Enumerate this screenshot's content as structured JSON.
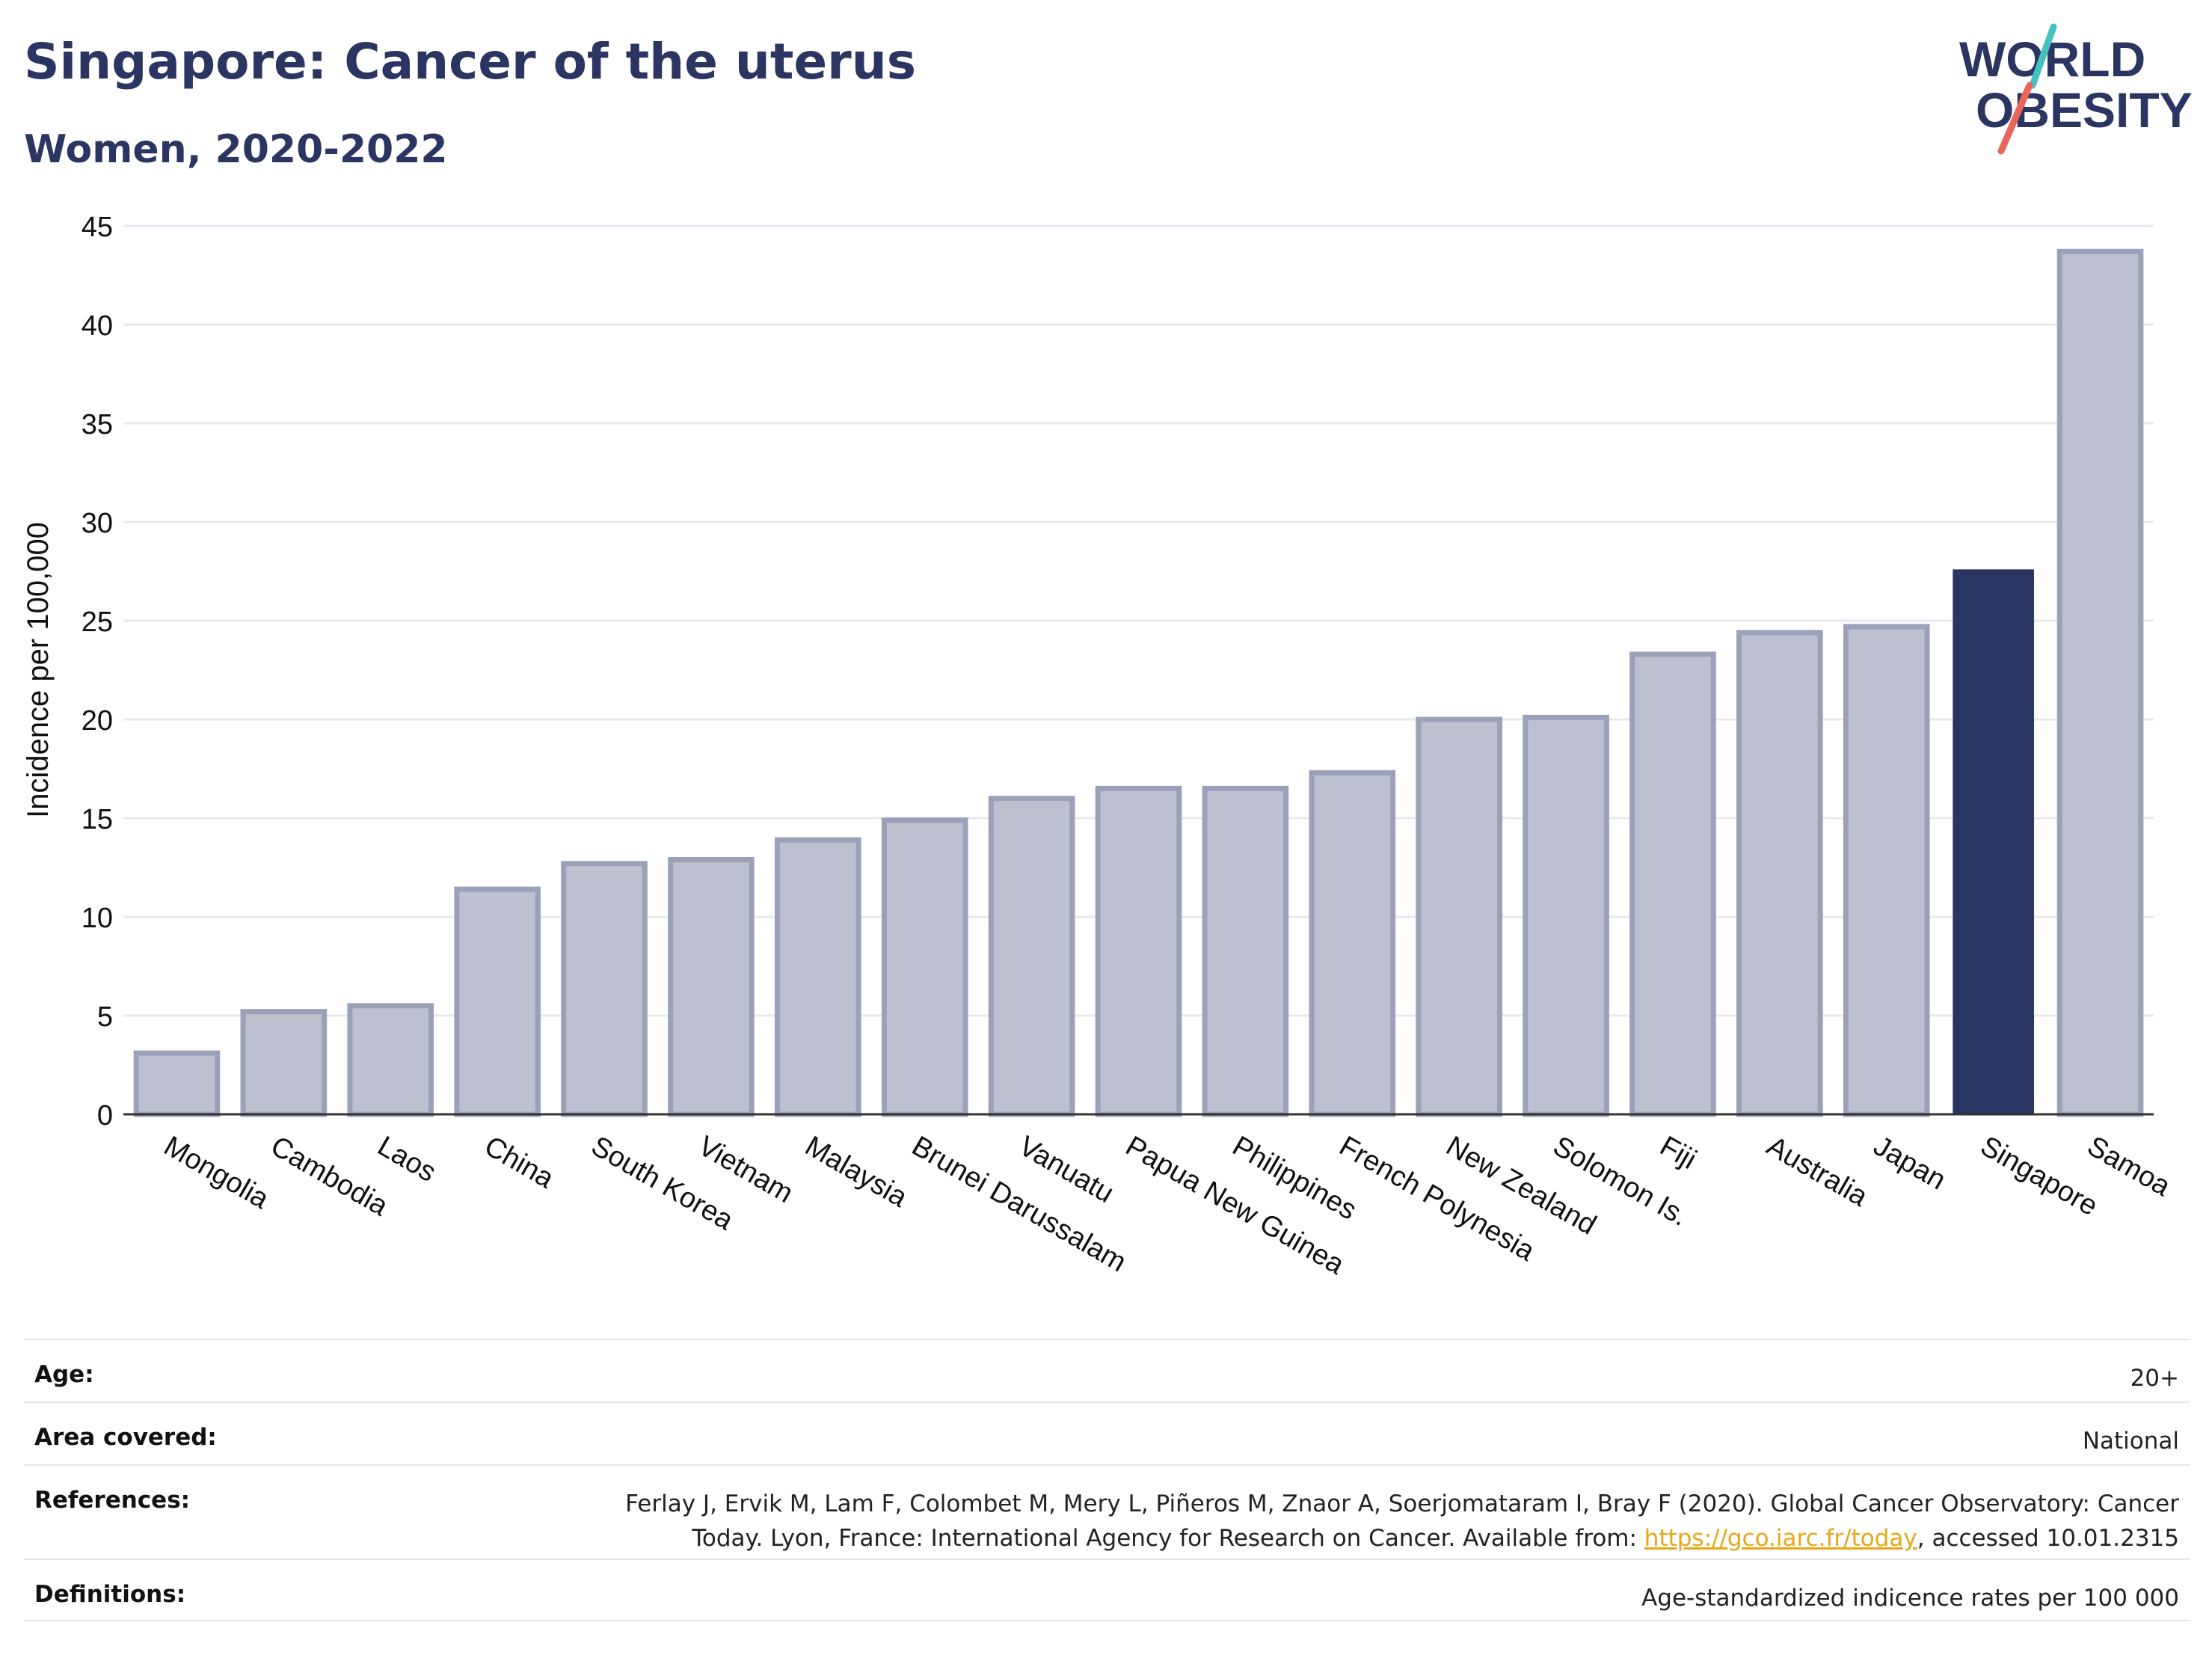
{
  "header": {
    "title": "Singapore: Cancer of the uterus",
    "subtitle": "Women, 2020-2022"
  },
  "logo": {
    "line1": "WORLD",
    "line2": "OBESITY",
    "slash_colors": [
      "#43c2c0",
      "#e8665a"
    ],
    "text_color": "#2b3562"
  },
  "chart_data": {
    "type": "bar",
    "title": "Singapore: Cancer of the uterus",
    "subtitle": "Women, 2020-2022",
    "ylabel": "Incidence per 100,000",
    "xlabel": "",
    "ylim": [
      0,
      45
    ],
    "yticks": [
      0,
      5,
      10,
      15,
      20,
      25,
      30,
      35,
      40,
      45
    ],
    "grid": true,
    "categories": [
      "Mongolia",
      "Cambodia",
      "Laos",
      "China",
      "South Korea",
      "Vietnam",
      "Malaysia",
      "Brunei Darussalam",
      "Vanuatu",
      "Papua New Guinea",
      "Philippines",
      "French Polynesia",
      "New Zealand",
      "Solomon Is.",
      "Fiji",
      "Australia",
      "Japan",
      "Singapore",
      "Samoa"
    ],
    "values": [
      3.1,
      5.2,
      5.5,
      11.4,
      12.7,
      12.9,
      13.9,
      14.9,
      16.0,
      16.5,
      16.5,
      17.3,
      20.0,
      20.1,
      23.3,
      24.4,
      24.7,
      27.6,
      43.7
    ],
    "highlight": "Singapore",
    "colors": {
      "bar": "#bcc0cf",
      "bar_outline": "#9ba1b8",
      "highlight": "#2b3562",
      "grid": "#e8e9ef",
      "axis": "#333333"
    }
  },
  "info": {
    "age_label": "Age:",
    "age_value": "20+",
    "area_label": "Area covered:",
    "area_value": "National",
    "references_label": "References:",
    "references_text": "Ferlay J, Ervik M, Lam F, Colombet M, Mery L, Piñeros M, Znaor A, Soerjomataram I, Bray F (2020). Global Cancer Observatory: Cancer Today. Lyon, France: International Agency for Research on Cancer. Available from: ",
    "references_link": "https://gco.iarc.fr/today",
    "references_suffix": ", accessed 10.01.2315",
    "definitions_label": "Definitions:",
    "definitions_value": "Age-standardized indicence rates per 100 000"
  }
}
